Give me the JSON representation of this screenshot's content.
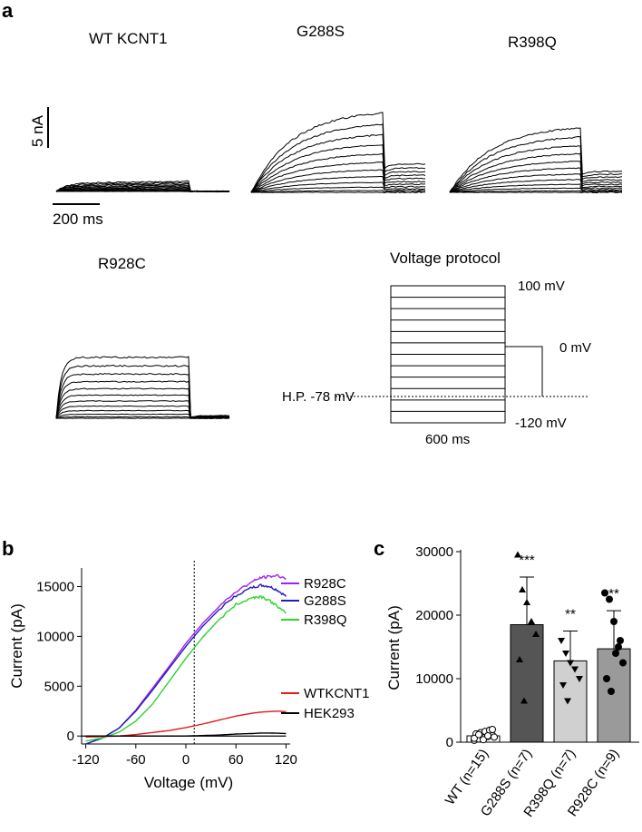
{
  "panels": {
    "a": "a",
    "b": "b",
    "c": "c"
  },
  "panel_a": {
    "traces": [
      {
        "title": "WT KCNT1",
        "peak_nA": 1.2,
        "tail_nA": 0.0,
        "shape": "flat"
      },
      {
        "title": "G288S",
        "peak_nA": 9.5,
        "tail_nA": 3.4,
        "shape": "slow"
      },
      {
        "title": "R398Q",
        "peak_nA": 7.7,
        "tail_nA": 2.5,
        "shape": "slow"
      },
      {
        "title": "R928C",
        "peak_nA": 7.3,
        "tail_nA": 0.3,
        "shape": "fast"
      }
    ],
    "scale_current": "5 nA",
    "scale_time": "200 ms",
    "protocol": {
      "title": "Voltage protocol",
      "top": "100 mV",
      "zero": "0 mV",
      "bottom": "-120 mV",
      "holding": "H.P. -78 mV",
      "duration": "600 ms"
    }
  },
  "chart_data": [
    {
      "type": "line",
      "panel": "b",
      "xlabel": "Voltage (mV)",
      "ylabel": "Current (pA)",
      "xlim": [
        -125,
        125
      ],
      "ylim": [
        -800,
        16500
      ],
      "xticks": [
        "-120",
        "-60",
        "0",
        "60",
        "120"
      ],
      "yticks": [
        "0",
        "5000",
        "10000",
        "15000"
      ],
      "x": [
        -120,
        -100,
        -80,
        -60,
        -40,
        -20,
        0,
        20,
        40,
        60,
        80,
        90,
        100,
        110,
        120
      ],
      "series": [
        {
          "name": "R928C",
          "color": "#a020f0",
          "values": [
            -800,
            -200,
            800,
            2600,
            4800,
            7000,
            9300,
            11300,
            13000,
            14500,
            15500,
            15900,
            16000,
            16100,
            15800
          ]
        },
        {
          "name": "G288S",
          "color": "#1f1fb4",
          "values": [
            -800,
            -200,
            800,
            2500,
            4600,
            6800,
            9000,
            11000,
            12700,
            14100,
            14900,
            15100,
            15000,
            14600,
            14000
          ]
        },
        {
          "name": "R398Q",
          "color": "#2bd32b",
          "values": [
            -500,
            -200,
            400,
            1500,
            3200,
            5500,
            7800,
            9900,
            11700,
            13200,
            13900,
            14000,
            13600,
            13000,
            12300
          ]
        },
        {
          "name": "WTKCNT1",
          "color": "#e41a1c",
          "values": [
            -100,
            -50,
            0,
            150,
            350,
            550,
            850,
            1200,
            1600,
            2000,
            2300,
            2400,
            2450,
            2500,
            2450
          ]
        },
        {
          "name": "HEK293",
          "color": "#000000",
          "values": [
            0,
            0,
            0,
            0,
            0,
            0,
            0,
            50,
            100,
            200,
            250,
            300,
            300,
            280,
            250
          ]
        }
      ],
      "vline_x": 10,
      "legend": "right"
    },
    {
      "type": "bar",
      "panel": "c",
      "ylabel": "Current (pA)",
      "ylim": [
        0,
        30000
      ],
      "yticks": [
        "0",
        "10000",
        "20000",
        "30000"
      ],
      "categories": [
        "WT (n=15)",
        "G288S (n=7)",
        "R398Q (n=7)",
        "R928C (n=9)"
      ],
      "values": [
        1000,
        18500,
        12800,
        14700
      ],
      "errors": [
        600,
        7500,
        4700,
        6000
      ],
      "significance": [
        "",
        "***",
        "**",
        "**"
      ],
      "colors": [
        "#ffffff",
        "#555555",
        "#d0d0d0",
        "#9a9a9a"
      ],
      "markers": [
        "circle-open",
        "triangle-up",
        "triangle-down",
        "circle"
      ],
      "points": [
        [
          300,
          500,
          700,
          900,
          1100,
          1300,
          1500,
          1700,
          1900,
          800,
          600,
          1200,
          400,
          1000,
          2000
        ],
        [
          29500,
          24000,
          22000,
          19000,
          17000,
          13000,
          6500
        ],
        [
          16000,
          14000,
          12500,
          11500,
          10000,
          9000,
          6500
        ],
        [
          23500,
          22500,
          19000,
          15000,
          12500,
          10000,
          8000,
          14000,
          16000
        ]
      ]
    }
  ]
}
